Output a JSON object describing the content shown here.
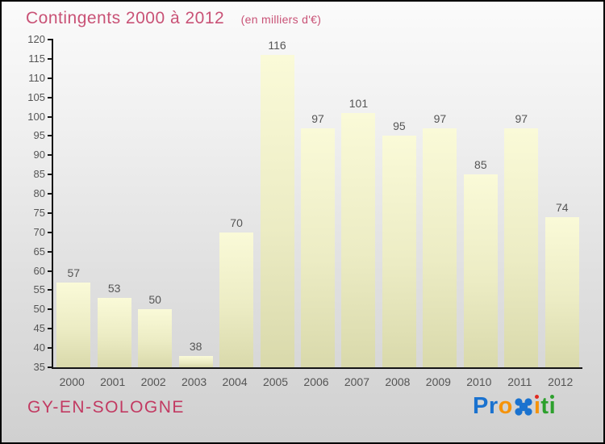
{
  "title": {
    "text": "Contingents 2000 à 2012",
    "subtitle": "(en milliers d'€)",
    "color": "#c95276"
  },
  "chart_data": {
    "type": "bar",
    "title": "Contingents 2000 à 2012",
    "subtitle": "(en milliers d'€)",
    "categories": [
      "2000",
      "2001",
      "2002",
      "2003",
      "2004",
      "2005",
      "2006",
      "2007",
      "2008",
      "2009",
      "2010",
      "2011",
      "2012"
    ],
    "values": [
      57,
      53,
      50,
      38,
      70,
      116,
      97,
      101,
      95,
      97,
      85,
      97,
      74
    ],
    "xlabel": "",
    "ylabel": "",
    "ylim": [
      35,
      120
    ],
    "ytick_step": 5,
    "grid": false,
    "legend": false,
    "value_labels": true,
    "bar_color_top": "#fafad8",
    "bar_color_bottom": "#d9d9ab",
    "axis_color": "#151515",
    "label_color": "#555555"
  },
  "footer": {
    "place_name": "GY-EN-SOLOGNE",
    "color": "#c23a62"
  },
  "logo": {
    "text": "Proxiti",
    "letters": [
      {
        "ch": "P",
        "color": "#1a72cf"
      },
      {
        "ch": "r",
        "color": "#1a72cf"
      },
      {
        "ch": "o",
        "color": "#f5930a"
      },
      {
        "ch": "x",
        "color": "#1a72cf",
        "special": "x-mark"
      },
      {
        "ch": "i",
        "color": "#f5930a",
        "dot_color": "#e02a20"
      },
      {
        "ch": "t",
        "color": "#2da02d"
      },
      {
        "ch": "i",
        "color": "#2da02d",
        "dot_color": "#2da02d"
      }
    ]
  }
}
